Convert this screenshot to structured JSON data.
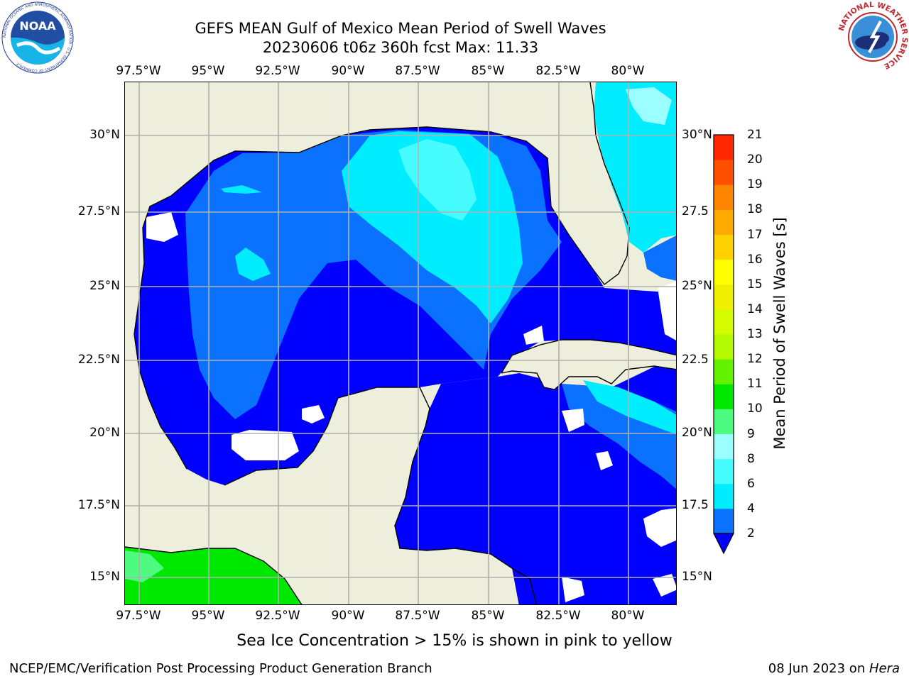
{
  "title": {
    "line1": "GEFS MEAN Gulf of Mexico Mean Period of Swell Waves",
    "line2": "20230606 t06z 360h fcst   Max: 11.33"
  },
  "logos": {
    "noaa_text": "NOAA",
    "noaa_ring_text": "NATIONAL OCEANIC AND ATMOSPHERIC ADMINISTRATION · U.S. DEPARTMENT OF COMMERCE",
    "nws_ring_text": "NATIONAL WEATHER SERVICE"
  },
  "axes": {
    "lon_ticks": [
      "97.5°W",
      "95°W",
      "92.5°W",
      "90°W",
      "87.5°W",
      "85°W",
      "82.5°W",
      "80°W"
    ],
    "lat_ticks_left": [
      "30°N",
      "27.5°N",
      "25°N",
      "22.5°N",
      "20°N",
      "17.5°N",
      "15°N"
    ],
    "lat_ticks_right": [
      "30°N",
      "27.5",
      "25°N",
      "22.5",
      "20°N",
      "17.5",
      "15°N"
    ]
  },
  "colorbar": {
    "label": "Mean Period of Swell Waves [s]",
    "ticks": [
      "2",
      "4",
      "6",
      "8",
      "9",
      "10",
      "11",
      "12",
      "13",
      "14",
      "15",
      "16",
      "17",
      "18",
      "19",
      "20",
      "21"
    ],
    "colors": [
      "#0000ff",
      "#0a72ff",
      "#00ecff",
      "#46fcff",
      "#9cffff",
      "#4cfb7f",
      "#00e800",
      "#64f200",
      "#b4fa00",
      "#d6fc00",
      "#f0f000",
      "#ffff00",
      "#ffd200",
      "#ffaa00",
      "#ff8400",
      "#ff5000",
      "#ff2800",
      "#ff0000"
    ]
  },
  "caption": "Sea Ice Concentration > 15% is shown in pink to yellow",
  "footer": {
    "left": "NCEP/EMC/Verification Post Processing Product Generation Branch",
    "right_date": "08 Jun 2023 on ",
    "right_host": "Hera"
  },
  "map_colors": {
    "land": "#eeeedc",
    "ocean_deep": "#0000ff",
    "ocean_mid": "#0a72ff",
    "ocean_cyan": "#00ecff",
    "ocean_light": "#46fcff",
    "pale_cyan": "#9cffff",
    "green": "#00e800",
    "light_green": "#4cfb7f",
    "grid": "#b0b0b0"
  }
}
